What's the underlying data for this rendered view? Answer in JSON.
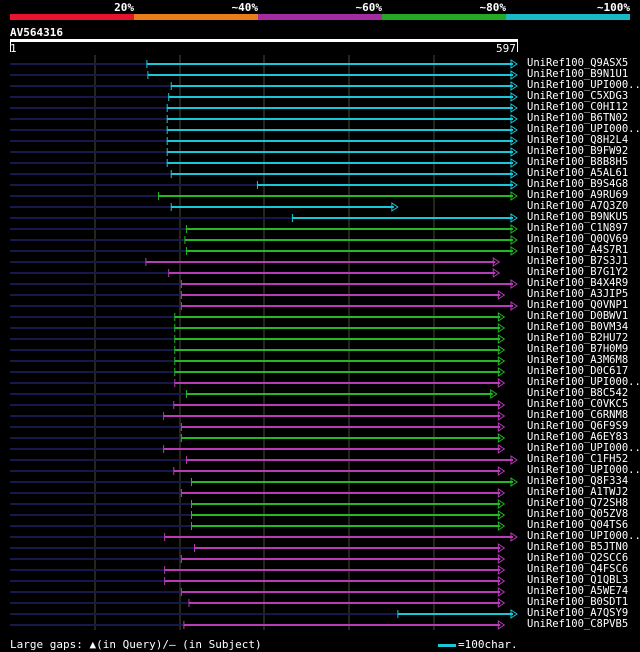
{
  "scale": {
    "labels": [
      "20%",
      "~40%",
      "~60%",
      "~80%",
      "~100%"
    ],
    "colors": [
      "#e8132c",
      "#e87d1a",
      "#a32ca3",
      "#25a825",
      "#19b8c4"
    ]
  },
  "query": {
    "id": "AV564316",
    "start": "1",
    "end": "597"
  },
  "legend": {
    "gaps": "Large gaps: ▲(in Query)/— (in Subject)",
    "scale_note": "=100char."
  },
  "hits": [
    {
      "label": "UniRef100_Q9ASX5",
      "color": "cyan",
      "qs": 0.27,
      "qe": 1.0
    },
    {
      "label": "UniRef100_B9N1U1",
      "color": "cyan",
      "qs": 0.272,
      "qe": 1.0
    },
    {
      "label": "UniRef100_UPI000..",
      "color": "cyan",
      "qs": 0.318,
      "qe": 1.0
    },
    {
      "label": "UniRef100_C5XDG3",
      "color": "cyan",
      "qs": 0.313,
      "qe": 1.0
    },
    {
      "label": "UniRef100_C0HI12",
      "color": "cyan",
      "qs": 0.31,
      "qe": 1.0
    },
    {
      "label": "UniRef100_B6TN02",
      "color": "cyan",
      "qs": 0.31,
      "qe": 1.0
    },
    {
      "label": "UniRef100_UPI000..",
      "color": "cyan",
      "qs": 0.31,
      "qe": 1.0
    },
    {
      "label": "UniRef100_Q8H2L4",
      "color": "cyan",
      "qs": 0.31,
      "qe": 1.0
    },
    {
      "label": "UniRef100_B9FW92",
      "color": "cyan",
      "qs": 0.31,
      "qe": 1.0
    },
    {
      "label": "UniRef100_B8B8H5",
      "color": "cyan",
      "qs": 0.31,
      "qe": 1.0
    },
    {
      "label": "UniRef100_A5AL61",
      "color": "cyan",
      "qs": 0.318,
      "qe": 1.0
    },
    {
      "label": "UniRef100_B9S4G8",
      "color": "cyan",
      "qs": 0.488,
      "qe": 1.0
    },
    {
      "label": "UniRef100_A9RU69",
      "color": "green",
      "qs": 0.293,
      "qe": 1.0
    },
    {
      "label": "UniRef100_A7Q3Z0",
      "color": "cyan",
      "qs": 0.318,
      "qe": 0.765
    },
    {
      "label": "UniRef100_B9NKU5",
      "color": "cyan",
      "qs": 0.557,
      "qe": 1.0
    },
    {
      "label": "UniRef100_C1N897",
      "color": "green",
      "qs": 0.348,
      "qe": 1.0
    },
    {
      "label": "UniRef100_Q0QV69",
      "color": "green",
      "qs": 0.345,
      "qe": 1.0
    },
    {
      "label": "UniRef100_A4S7R1",
      "color": "green",
      "qs": 0.348,
      "qe": 1.0
    },
    {
      "label": "UniRef100_B7S3J1",
      "color": "magenta",
      "qs": 0.268,
      "qe": 0.965
    },
    {
      "label": "UniRef100_B7G1Y2",
      "color": "magenta",
      "qs": 0.313,
      "qe": 0.965
    },
    {
      "label": "UniRef100_B4X4R9",
      "color": "magenta",
      "qs": 0.338,
      "qe": 1.0
    },
    {
      "label": "UniRef100_A3JIP5",
      "color": "magenta",
      "qs": 0.338,
      "qe": 0.975
    },
    {
      "label": "UniRef100_Q0VNP1",
      "color": "magenta",
      "qs": 0.338,
      "qe": 1.0
    },
    {
      "label": "UniRef100_D0BWV1",
      "color": "green",
      "qs": 0.325,
      "qe": 0.975
    },
    {
      "label": "UniRef100_B0VM34",
      "color": "green",
      "qs": 0.325,
      "qe": 0.975
    },
    {
      "label": "UniRef100_B2HU72",
      "color": "green",
      "qs": 0.325,
      "qe": 0.975
    },
    {
      "label": "UniRef100_B7H0M9",
      "color": "green",
      "qs": 0.325,
      "qe": 0.975
    },
    {
      "label": "UniRef100_A3M6M8",
      "color": "green",
      "qs": 0.325,
      "qe": 0.975
    },
    {
      "label": "UniRef100_D0C617",
      "color": "green",
      "qs": 0.325,
      "qe": 0.975
    },
    {
      "label": "UniRef100_UPI000..",
      "color": "magenta",
      "qs": 0.325,
      "qe": 0.975
    },
    {
      "label": "UniRef100_B8C542",
      "color": "green",
      "qs": 0.348,
      "qe": 0.96
    },
    {
      "label": "UniRef100_C0VKC5",
      "color": "magenta",
      "qs": 0.323,
      "qe": 0.975
    },
    {
      "label": "UniRef100_C6RNM8",
      "color": "magenta",
      "qs": 0.303,
      "qe": 0.975
    },
    {
      "label": "UniRef100_Q6F9S9",
      "color": "magenta",
      "qs": 0.338,
      "qe": 0.975
    },
    {
      "label": "UniRef100_A6EY83",
      "color": "green",
      "qs": 0.338,
      "qe": 0.975
    },
    {
      "label": "UniRef100_UPI000..",
      "color": "magenta",
      "qs": 0.303,
      "qe": 0.975
    },
    {
      "label": "UniRef100_C1FH52",
      "color": "magenta",
      "qs": 0.348,
      "qe": 1.0
    },
    {
      "label": "UniRef100_UPI000..",
      "color": "magenta",
      "qs": 0.323,
      "qe": 0.975
    },
    {
      "label": "UniRef100_Q8F334",
      "color": "green",
      "qs": 0.358,
      "qe": 1.0
    },
    {
      "label": "UniRef100_A1TWJ2",
      "color": "magenta",
      "qs": 0.338,
      "qe": 0.975
    },
    {
      "label": "UniRef100_Q72SH8",
      "color": "green",
      "qs": 0.358,
      "qe": 0.975
    },
    {
      "label": "UniRef100_Q05ZV8",
      "color": "green",
      "qs": 0.358,
      "qe": 0.975
    },
    {
      "label": "UniRef100_Q04TS6",
      "color": "green",
      "qs": 0.358,
      "qe": 0.975
    },
    {
      "label": "UniRef100_UPI000..",
      "color": "magenta",
      "qs": 0.305,
      "qe": 1.0
    },
    {
      "label": "UniRef100_B5JTN0",
      "color": "magenta",
      "qs": 0.364,
      "qe": 0.975
    },
    {
      "label": "UniRef100_Q2SCC6",
      "color": "magenta",
      "qs": 0.338,
      "qe": 0.975
    },
    {
      "label": "UniRef100_Q4FSC6",
      "color": "magenta",
      "qs": 0.305,
      "qe": 0.975
    },
    {
      "label": "UniRef100_Q1QBL3",
      "color": "magenta",
      "qs": 0.305,
      "qe": 0.975
    },
    {
      "label": "UniRef100_A5WE74",
      "color": "magenta",
      "qs": 0.338,
      "qe": 0.975
    },
    {
      "label": "UniRef100_B0SDT1",
      "color": "magenta",
      "qs": 0.353,
      "qe": 0.975
    },
    {
      "label": "UniRef100_A7QSY9",
      "color": "cyan",
      "qs": 0.765,
      "qe": 1.0
    },
    {
      "label": "UniRef100_C8PVB5",
      "color": "magenta",
      "qs": 0.343,
      "qe": 0.975
    }
  ],
  "colors": {
    "cyan": "#19c8d8",
    "green": "#25b825",
    "magenta": "#b83cb8",
    "unaligned": "#16194a",
    "grid": "#4a4a3a"
  }
}
